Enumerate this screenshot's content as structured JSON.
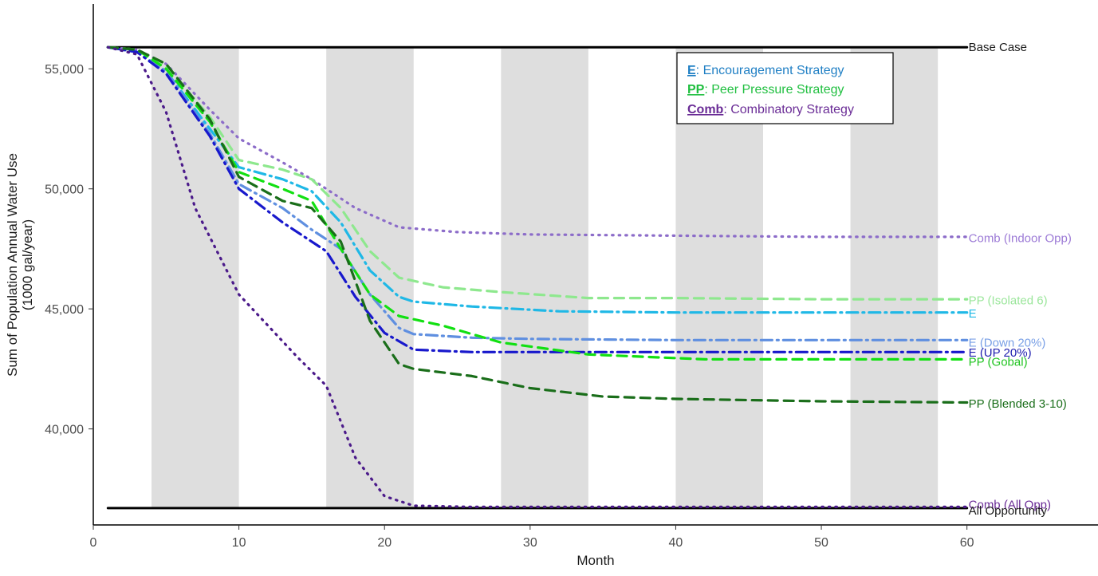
{
  "chart_data": {
    "type": "line",
    "title": "",
    "xlabel": "Month",
    "ylabel": "Sum of Population Annual Water Use",
    "ylabel_sub": "(1000 gal/year)",
    "xlim": [
      0,
      69
    ],
    "ylim": [
      36000,
      57700
    ],
    "x_ticks": [
      0,
      10,
      20,
      30,
      40,
      50,
      60
    ],
    "y_ticks": [
      40000,
      45000,
      50000,
      55000
    ],
    "y_tick_labels": [
      "40,000",
      "45,000",
      "50,000",
      "55,000"
    ],
    "shaded_bands": [
      [
        4,
        10
      ],
      [
        16,
        22
      ],
      [
        28,
        34
      ],
      [
        40,
        46
      ],
      [
        52,
        58
      ]
    ],
    "shaded_color": "#dedede",
    "grid": false,
    "legend": {
      "placement": "top-right",
      "entries": [
        {
          "key": "E",
          "text": ": Encouragement Strategy",
          "color": "#1f7fc4"
        },
        {
          "key": "PP",
          "text": ": Peer Pressure Strategy",
          "color": "#1fbf3f"
        },
        {
          "key": "Comb",
          "text": ": Combinatory Strategy",
          "color": "#6a2c96"
        }
      ]
    },
    "series": [
      {
        "name": "Base Case",
        "color": "#000000",
        "dash": "solid",
        "x": [
          1,
          60
        ],
        "y": [
          55900,
          55900
        ]
      },
      {
        "name": "All Opportunity",
        "color": "#000000",
        "dash": "solid",
        "x": [
          1,
          60
        ],
        "y": [
          36700,
          36700
        ]
      },
      {
        "name": "Comb (Indoor Opp)",
        "color": "#8c6cc9",
        "dash": "dot",
        "x": [
          1,
          3,
          5,
          8,
          10,
          13,
          15,
          18,
          21,
          25,
          30,
          40,
          50,
          60
        ],
        "y": [
          55900,
          55800,
          55200,
          53300,
          52100,
          51100,
          50400,
          49200,
          48400,
          48200,
          48100,
          48050,
          48000,
          48000
        ]
      },
      {
        "name": "PP (Isolated 6)",
        "color": "#8ee88e",
        "dash": "dash",
        "x": [
          1,
          3,
          5,
          8,
          10,
          13,
          15,
          17,
          19,
          21,
          24,
          28,
          34,
          40,
          50,
          60
        ],
        "y": [
          55900,
          55800,
          55100,
          53000,
          51200,
          50800,
          50400,
          49200,
          47400,
          46300,
          45900,
          45700,
          45450,
          45450,
          45400,
          45400
        ]
      },
      {
        "name": "E",
        "color": "#1fb8e6",
        "dash": "dashdot",
        "x": [
          1,
          3,
          5,
          8,
          10,
          13,
          15,
          17,
          19,
          21,
          22,
          26,
          32,
          40,
          50,
          60
        ],
        "y": [
          55900,
          55700,
          54900,
          52500,
          50900,
          50400,
          49900,
          48600,
          46600,
          45500,
          45300,
          45100,
          44900,
          44850,
          44850,
          44850
        ]
      },
      {
        "name": "E (Down 20%)",
        "color": "#5f8fe0",
        "dash": "dashdot",
        "x": [
          1,
          3,
          5,
          8,
          10,
          13,
          15,
          17,
          19,
          21,
          22,
          26,
          30,
          40,
          50,
          60
        ],
        "y": [
          55900,
          55700,
          54900,
          52300,
          50200,
          49200,
          48300,
          47500,
          45600,
          44200,
          43950,
          43800,
          43750,
          43700,
          43700,
          43700
        ]
      },
      {
        "name": "E (UP 20%)",
        "color": "#1818cc",
        "dash": "dashdot",
        "x": [
          1,
          3,
          5,
          8,
          10,
          13,
          16,
          18,
          20,
          22,
          26,
          40,
          50,
          60
        ],
        "y": [
          55900,
          55700,
          54800,
          52200,
          50000,
          48600,
          47400,
          45500,
          44000,
          43300,
          43200,
          43200,
          43200,
          43200
        ]
      },
      {
        "name": "PP (Gobal)",
        "color": "#12e012",
        "dash": "dash",
        "x": [
          1,
          3,
          5,
          8,
          10,
          13,
          15,
          17,
          19,
          21,
          24,
          28,
          34,
          42,
          50,
          60
        ],
        "y": [
          55900,
          55800,
          55000,
          52800,
          50700,
          50000,
          49500,
          47500,
          45600,
          44700,
          44300,
          43600,
          43100,
          42900,
          42900,
          42900
        ]
      },
      {
        "name": "PP (Blended 3-10)",
        "color": "#1a6e1a",
        "dash": "dash",
        "x": [
          1,
          3,
          5,
          8,
          10,
          13,
          15,
          17,
          19,
          21,
          22,
          26,
          30,
          35,
          40,
          50,
          60
        ],
        "y": [
          55900,
          55800,
          55200,
          52900,
          50500,
          49500,
          49200,
          47800,
          44500,
          42700,
          42500,
          42200,
          41700,
          41350,
          41250,
          41150,
          41100
        ]
      },
      {
        "name": "Comb (All Opp)",
        "color": "#4b1a8a",
        "dash": "dot",
        "x": [
          1,
          3,
          5,
          7,
          9,
          10,
          12,
          14,
          16,
          18,
          20,
          22,
          26,
          40,
          50,
          60
        ],
        "y": [
          55900,
          55600,
          53200,
          49200,
          46800,
          45600,
          44300,
          43000,
          41800,
          38800,
          37200,
          36800,
          36750,
          36750,
          36750,
          36750
        ]
      }
    ],
    "series_labels": [
      {
        "text": "Base Case",
        "color": "#1a1a1a",
        "y": 55900
      },
      {
        "text": "Comb (Indoor Opp)",
        "color": "#9c7ad6",
        "y": 47950
      },
      {
        "text": "PP (Isolated 6)",
        "color": "#9be69b",
        "y": 45350
      },
      {
        "text": "E",
        "color": "#1fb8e6",
        "y": 44800
      },
      {
        "text": "E (Down 20%)",
        "color": "#7aa0e6",
        "y": 43600
      },
      {
        "text": "E (UP 20%)",
        "color": "#2020b0",
        "y": 43180
      },
      {
        "text": "PP (Gobal)",
        "color": "#22c522",
        "y": 42800
      },
      {
        "text": "PP (Blended 3-10)",
        "color": "#1a6e1a",
        "y": 41050
      },
      {
        "text": "Comb (All Opp)",
        "color": "#6a2c96",
        "y": 36850
      },
      {
        "text": "All Opportunity",
        "color": "#1a1a1a",
        "y": 36600
      }
    ]
  }
}
